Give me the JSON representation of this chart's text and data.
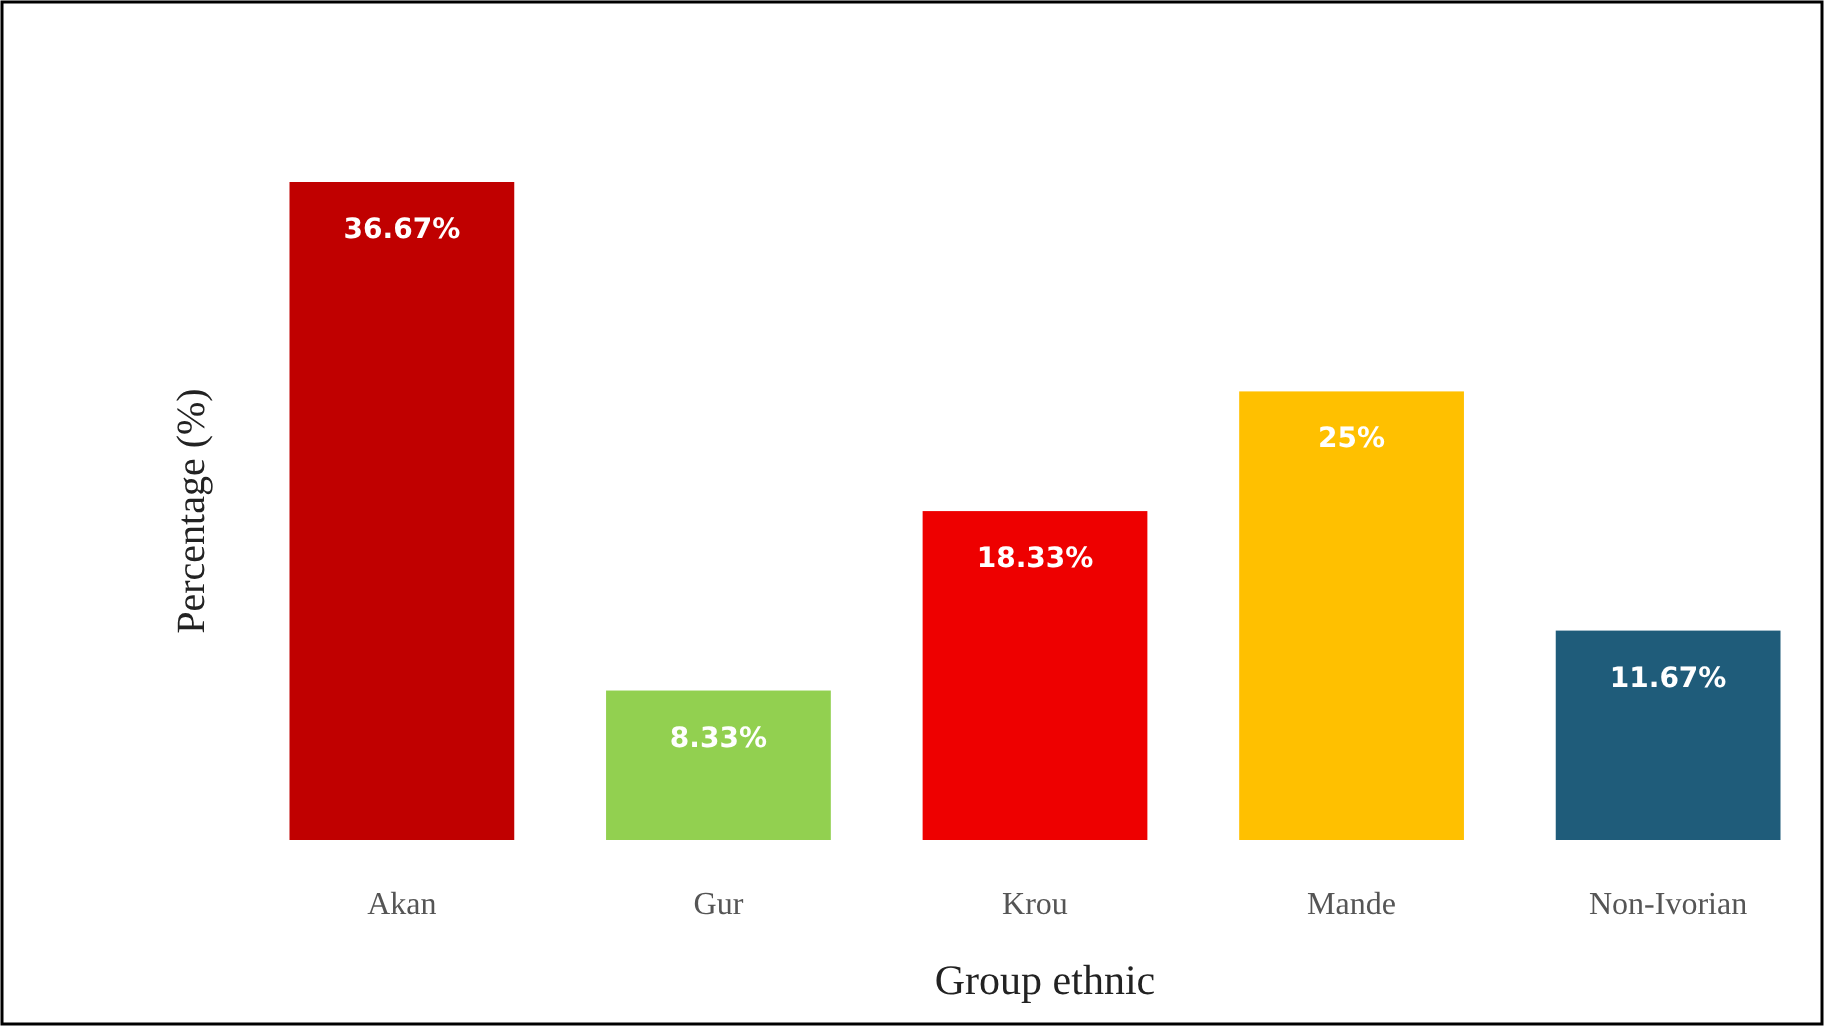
{
  "chart_data": {
    "type": "bar",
    "xlabel": "Group ethnic",
    "ylabel": "Percentage (%)",
    "relative": false,
    "categories": [
      "Akan",
      "Gur",
      "Krou",
      "Mande",
      "Non-Ivorian"
    ],
    "values": [
      36.67,
      8.33,
      18.33,
      25,
      11.67
    ],
    "colors": [
      "#c00000",
      "#92d050",
      "#ee0000",
      "#ffc000",
      "#1f5c7a"
    ],
    "value_labels": [
      "36.67%",
      "8.33%",
      "18.33%",
      "25%",
      "11.67%"
    ]
  }
}
